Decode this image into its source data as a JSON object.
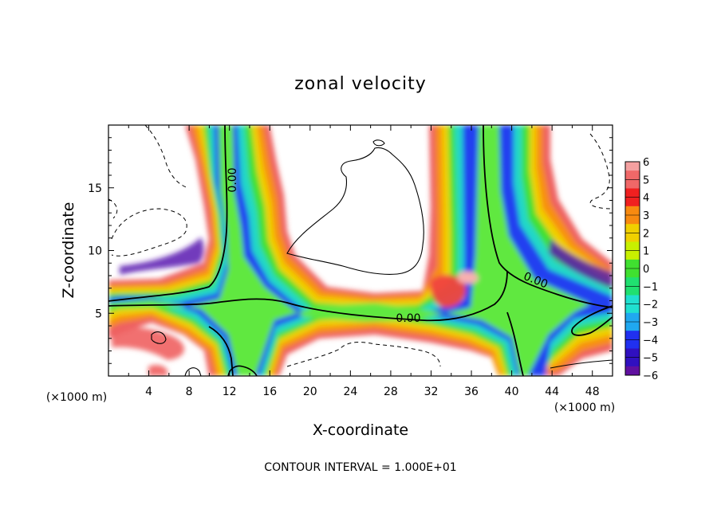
{
  "chart_data": {
    "type": "heatmap",
    "title": "zonal velocity",
    "xlabel": "X-coordinate",
    "ylabel": "Z-coordinate",
    "x_unit": "(×1000 m)",
    "x_unit_right": "(×1000 m)",
    "xlim": [
      0,
      50
    ],
    "ylim": [
      0,
      20
    ],
    "x_ticks": [
      4,
      8,
      12,
      16,
      20,
      24,
      28,
      32,
      36,
      40,
      44,
      48
    ],
    "x_tick_labels": [
      "4",
      "8",
      "12",
      "16",
      "20",
      "24",
      "28",
      "32",
      "36",
      "40",
      "44",
      "48"
    ],
    "y_ticks": [
      5,
      10,
      15
    ],
    "y_tick_labels": [
      "5",
      "10",
      "15"
    ],
    "colorbar": {
      "levels": [
        6,
        5,
        4,
        3,
        2,
        1,
        0,
        -1,
        -2,
        -3,
        -4,
        -5,
        -6
      ],
      "labels": [
        "6",
        "5",
        "4",
        "3",
        "2",
        "1",
        "0",
        "−1",
        "−2",
        "−3",
        "−4",
        "−5",
        "−6"
      ],
      "colors": [
        "#f4a0a0",
        "#f06868",
        "#f02020",
        "#f88a10",
        "#f0d000",
        "#c8f000",
        "#40e030",
        "#20e070",
        "#20e0d0",
        "#20a8f0",
        "#2030f0",
        "#3010c0",
        "#6010a0"
      ]
    },
    "contour_labels": [
      "0.00",
      "0.00",
      "0.00"
    ],
    "contour_interval_text": "CONTOUR INTERVAL = 1.000E+01",
    "features": {
      "left_column_x": [
        8,
        17
      ],
      "right_column_x": [
        33,
        46
      ],
      "layer_z": [
        3,
        8
      ]
    }
  }
}
